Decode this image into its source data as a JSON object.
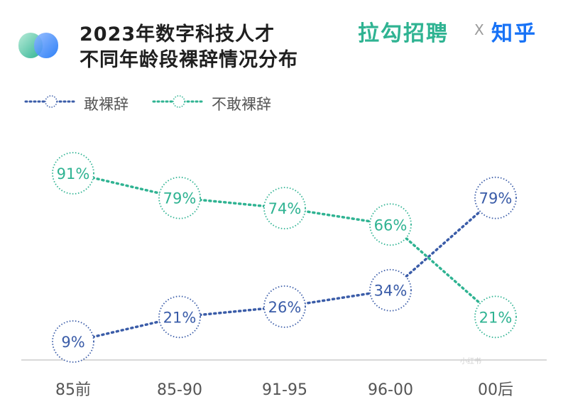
{
  "header": {
    "title_line1": "2023年数字科技人才",
    "title_line2": "不同年龄段裸辞情况分布",
    "brand_left": "拉勾招聘",
    "brand_separator": "X",
    "brand_right": "知乎"
  },
  "colors": {
    "dare": "#3a5ca8",
    "not_dare": "#2fb392",
    "axis": "#cccccc",
    "tick_text": "#555555"
  },
  "chart_data": {
    "type": "line",
    "categories": [
      "85前",
      "85-90",
      "91-95",
      "96-00",
      "00后"
    ],
    "series": [
      {
        "name": "敢裸辞",
        "values": [
          9,
          21,
          26,
          34,
          79
        ],
        "labels": [
          "9%",
          "21%",
          "26%",
          "34%",
          "79%"
        ],
        "color": "#3a5ca8"
      },
      {
        "name": "不敢裸辞",
        "values": [
          91,
          79,
          74,
          66,
          21
        ],
        "labels": [
          "91%",
          "79%",
          "74%",
          "66%",
          "21%"
        ],
        "color": "#2fb392"
      }
    ],
    "title": "2023年数字科技人才不同年龄段裸辞情况分布",
    "legend_position": "top-left",
    "ylim": [
      0,
      100
    ],
    "grid": false
  },
  "watermark": "小红书"
}
